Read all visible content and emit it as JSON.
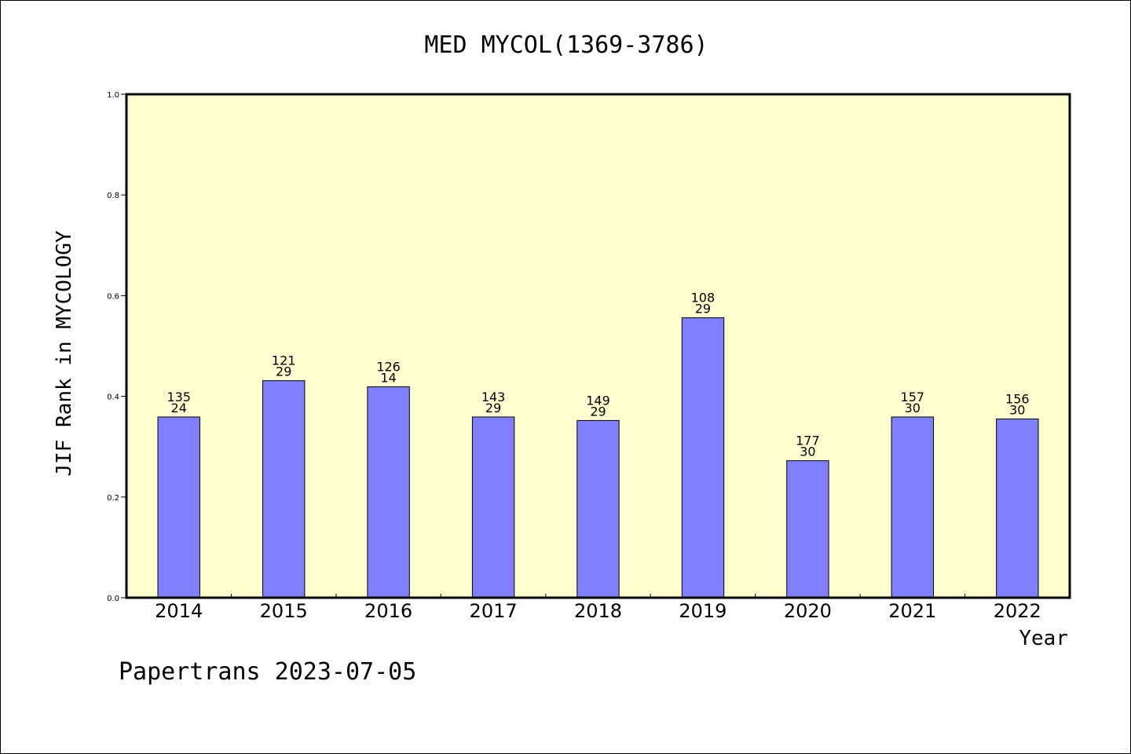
{
  "chart_data": {
    "type": "bar",
    "title": "MED MYCOL(1369-3786)",
    "xlabel": "Year",
    "ylabel": "JIF Rank in MYCOLOGY",
    "ylim": [
      0,
      1.0
    ],
    "y_ticks": [
      "0.0",
      "0.2",
      "0.4",
      "0.6",
      "0.8",
      "1.0"
    ],
    "grid": false,
    "categories": [
      "2014",
      "2015",
      "2016",
      "2017",
      "2018",
      "2019",
      "2020",
      "2021",
      "2022"
    ],
    "values": [
      0.359,
      0.431,
      0.419,
      0.359,
      0.352,
      0.556,
      0.272,
      0.359,
      0.355
    ],
    "rank_labels": [
      "135",
      "121",
      "126",
      "143",
      "149",
      "108",
      "177",
      "157",
      "156"
    ],
    "count_labels": [
      "24",
      "29",
      "14",
      "29",
      "29",
      "29",
      "30",
      "30",
      "30"
    ]
  },
  "colors": {
    "plot_background": "#ffffd0",
    "bar_fill": "#8080ff",
    "bar_stroke": "#000000",
    "frame": "#000000"
  },
  "footer_text": "Papertrans 2023-07-05"
}
